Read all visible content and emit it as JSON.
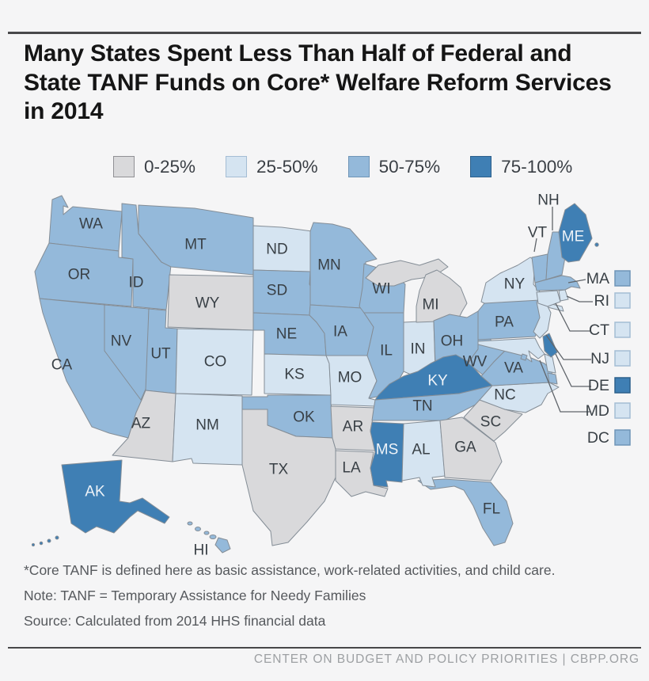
{
  "title": "Many States Spent Less Than Half of Federal and State TANF Funds on Core* Welfare Reform Services in 2014",
  "legend": {
    "items": [
      {
        "label": "0-25%"
      },
      {
        "label": "25-50%"
      },
      {
        "label": "50-75%"
      },
      {
        "label": "75-100%"
      }
    ]
  },
  "callouts": [
    {
      "abbr": "MA",
      "bin": "50-75%"
    },
    {
      "abbr": "RI",
      "bin": "25-50%"
    },
    {
      "abbr": "CT",
      "bin": "25-50%"
    },
    {
      "abbr": "NJ",
      "bin": "25-50%"
    },
    {
      "abbr": "DE",
      "bin": "75-100%"
    },
    {
      "abbr": "MD",
      "bin": "25-50%"
    },
    {
      "abbr": "DC",
      "bin": "50-75%"
    }
  ],
  "notes": [
    "*Core TANF is defined here as basic assistance, work-related activities, and child care.",
    "Note: TANF = Temporary Assistance for Needy Families",
    "Source: Calculated from 2014 HHS financial data"
  ],
  "footer": "CENTER ON BUDGET AND POLICY PRIORITIES | CBPP.ORG",
  "chart_data": {
    "type": "choropleth",
    "title": "Many States Spent Less Than Half of Federal and State TANF Funds on Core* Welfare Reform Services in 2014",
    "legend_bins": [
      "0-25%",
      "25-50%",
      "50-75%",
      "75-100%"
    ],
    "bin_colors": [
      "#d9d9db",
      "#d5e4f1",
      "#94b9da",
      "#3f7fb4"
    ],
    "legend_position": "top",
    "state_bins": {
      "WA": "50-75%",
      "OR": "50-75%",
      "CA": "50-75%",
      "NV": "50-75%",
      "ID": "50-75%",
      "MT": "50-75%",
      "WY": "0-25%",
      "UT": "50-75%",
      "CO": "25-50%",
      "AZ": "0-25%",
      "NM": "25-50%",
      "TX": "0-25%",
      "ND": "25-50%",
      "SD": "50-75%",
      "NE": "50-75%",
      "KS": "25-50%",
      "OK": "50-75%",
      "MN": "50-75%",
      "IA": "50-75%",
      "MO": "25-50%",
      "AR": "0-25%",
      "LA": "0-25%",
      "WI": "50-75%",
      "IL": "50-75%",
      "IN": "25-50%",
      "MI": "0-25%",
      "OH": "50-75%",
      "KY": "75-100%",
      "TN": "50-75%",
      "MS": "75-100%",
      "AL": "25-50%",
      "GA": "0-25%",
      "FL": "50-75%",
      "SC": "0-25%",
      "NC": "25-50%",
      "VA": "50-75%",
      "WV": "50-75%",
      "PA": "50-75%",
      "NY": "25-50%",
      "NJ": "25-50%",
      "DE": "75-100%",
      "MD": "25-50%",
      "DC": "50-75%",
      "VT": "50-75%",
      "NH": "50-75%",
      "MA": "50-75%",
      "RI": "25-50%",
      "CT": "25-50%",
      "ME": "75-100%",
      "AK": "75-100%",
      "HI": "50-75%"
    }
  }
}
